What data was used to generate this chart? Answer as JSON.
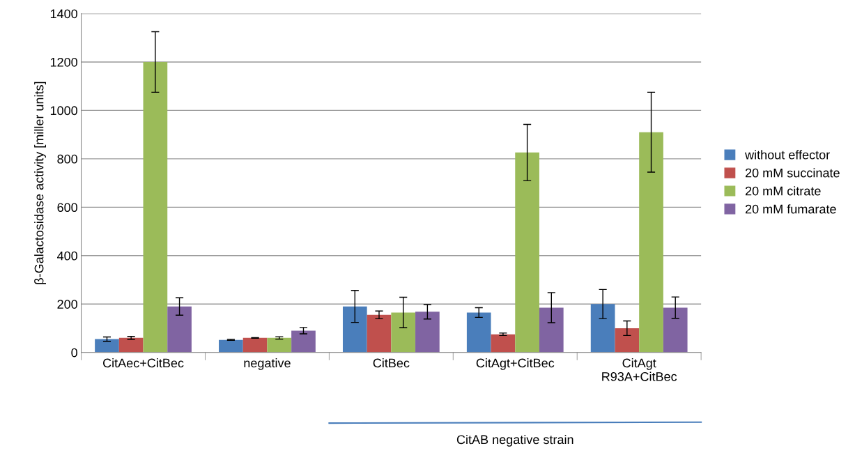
{
  "chart_data": {
    "type": "bar",
    "ylabel": "β-Galactosidase activity [miller units]",
    "categories": [
      "CitAec+CitBec",
      "negative",
      "CitBec",
      "CitAgt+CitBec",
      "CitAgt\nR93A+CitBec"
    ],
    "series": [
      {
        "name": "without effector",
        "color": "#4a7ebb",
        "values": [
          55,
          52,
          190,
          165,
          200
        ],
        "errors": [
          9,
          2,
          66,
          20,
          60
        ]
      },
      {
        "name": "20 mM succinate",
        "color": "#c0504d",
        "values": [
          60,
          60,
          155,
          75,
          100
        ],
        "errors": [
          6,
          1,
          16,
          5,
          30
        ]
      },
      {
        "name": "20 mM citrate",
        "color": "#9bbb59",
        "values": [
          1200,
          60,
          165,
          826,
          910
        ],
        "errors": [
          125,
          5,
          63,
          116,
          165
        ]
      },
      {
        "name": "20 mM fumarate",
        "color": "#8064a2",
        "values": [
          190,
          90,
          168,
          185,
          185
        ],
        "errors": [
          36,
          13,
          30,
          62,
          44
        ]
      }
    ],
    "ylim": [
      0,
      1400
    ],
    "yticks": [
      0,
      200,
      400,
      600,
      800,
      1000,
      1200,
      1400
    ],
    "grid": "y",
    "legend": "right",
    "annotations": [
      "CitAB negative strain"
    ]
  }
}
